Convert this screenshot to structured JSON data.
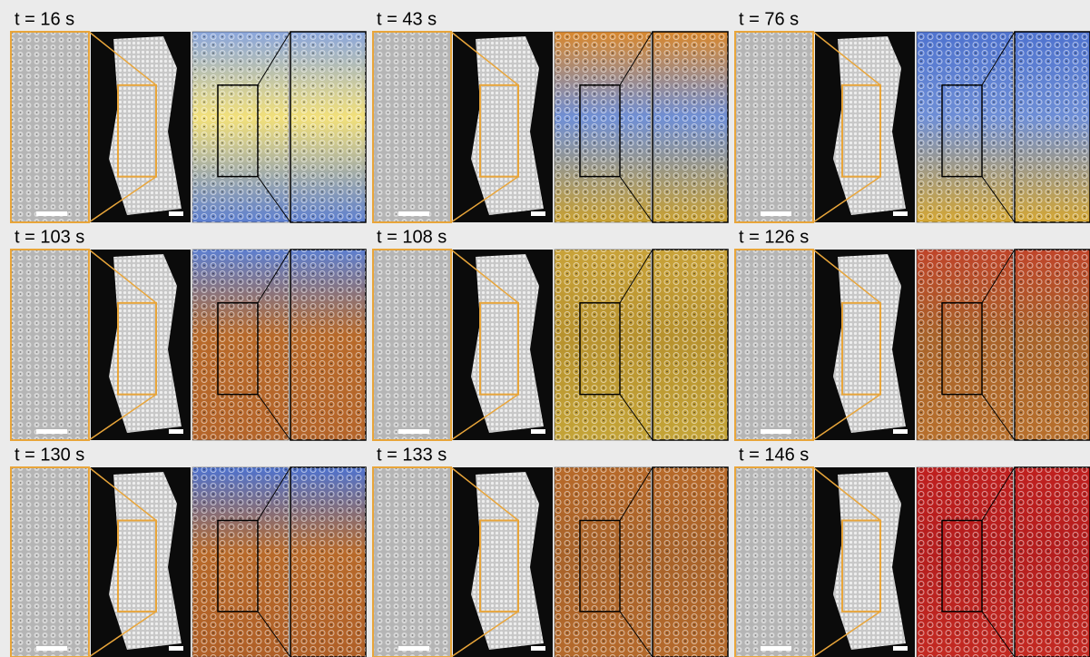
{
  "panels": [
    {
      "label": "t = 16 s"
    },
    {
      "label": "t = 43 s"
    },
    {
      "label": "t = 76 s"
    },
    {
      "label": "t = 103 s"
    },
    {
      "label": "t = 108 s"
    },
    {
      "label": "t = 126 s"
    },
    {
      "label": "t = 130 s"
    },
    {
      "label": "t = 133 s"
    },
    {
      "label": "t = 146 s"
    }
  ]
}
